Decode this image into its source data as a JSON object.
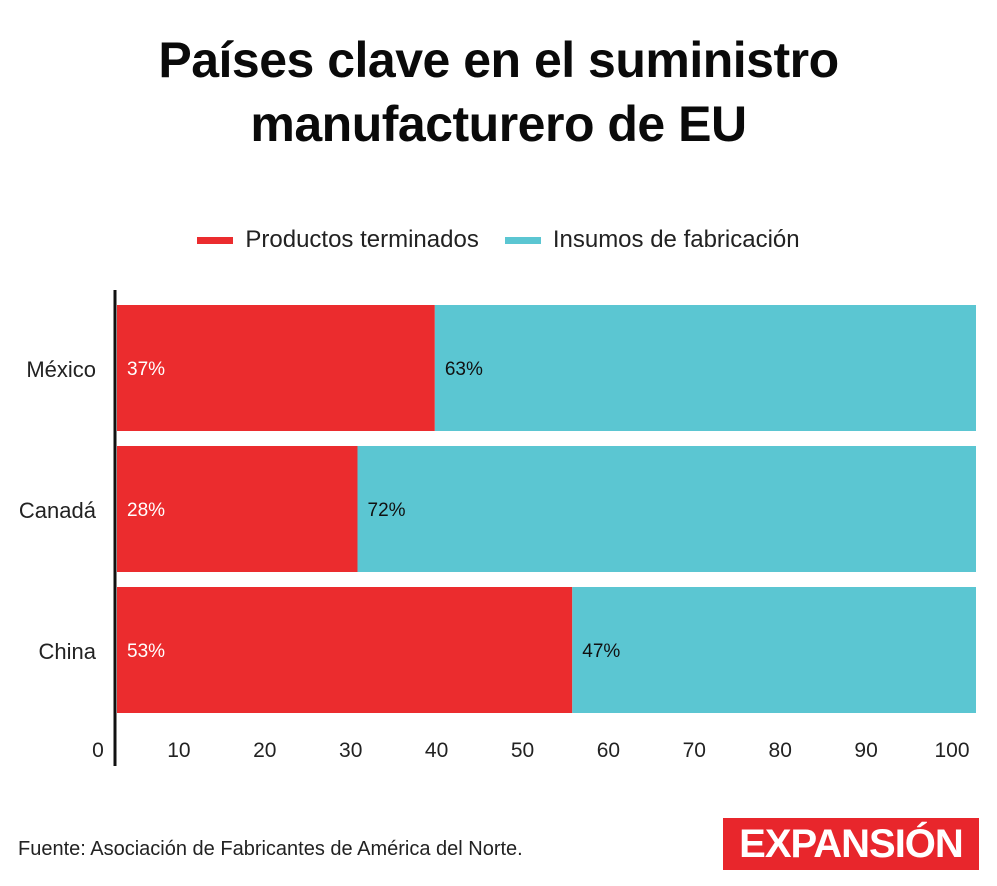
{
  "title_lines": [
    "Países clave en el suministro",
    "manufacturero de EU"
  ],
  "source": "Fuente: Asociación de Fabricantes de América del Norte.",
  "brand": "EXPANSIÓN",
  "colors": {
    "terminados": "#eb2c2e",
    "insumos": "#5bc6d2",
    "brand": "#e8262c"
  },
  "chart_data": {
    "type": "bar",
    "orientation": "horizontal",
    "stacked": true,
    "categories": [
      "México",
      "Canadá",
      "China"
    ],
    "series": [
      {
        "name": "Productos terminados",
        "values": [
          37,
          28,
          53
        ],
        "labels": [
          "37%",
          "28%",
          "53%"
        ],
        "color": "#eb2c2e"
      },
      {
        "name": "Insumos de fabricación",
        "values": [
          63,
          72,
          47
        ],
        "labels": [
          "63%",
          "72%",
          "47%"
        ],
        "color": "#5bc6d2"
      }
    ],
    "xlim": [
      0,
      100
    ],
    "xticks": [
      0,
      10,
      20,
      30,
      40,
      50,
      60,
      70,
      80,
      90,
      100
    ],
    "legend_position": "top-center",
    "grid": false
  }
}
